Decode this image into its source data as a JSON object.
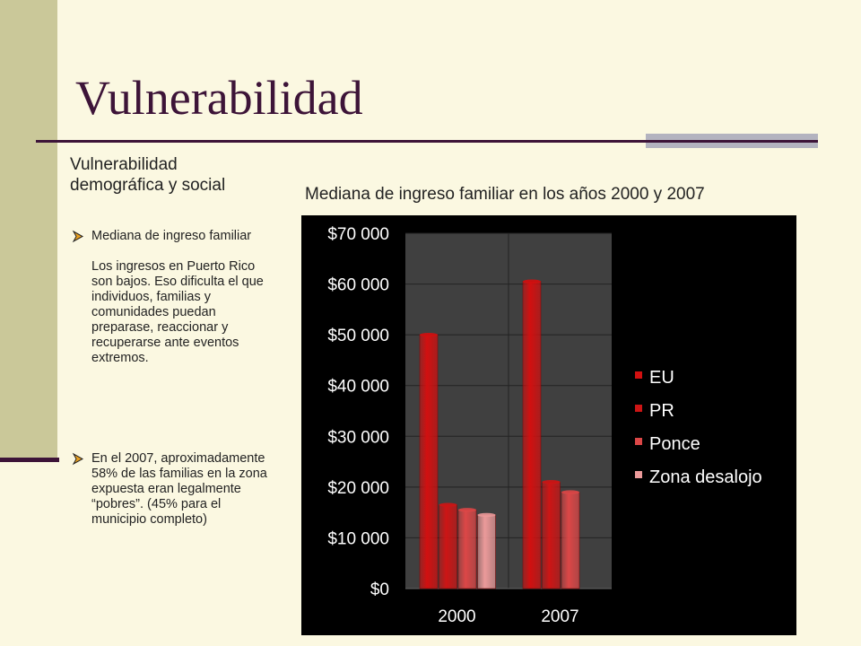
{
  "slide": {
    "title": "Vulnerabilidad",
    "subheading": "Vulnerabilidad demográfica y social",
    "bullets": [
      {
        "paragraphs": [
          "Mediana de ingreso familiar",
          "Los ingresos en Puerto Rico son bajos. Eso dificulta el que individuos, familias y comunidades puedan preparase, reaccionar y recuperarse ante eventos extremos."
        ]
      },
      {
        "paragraphs": [
          "En el 2007, aproximadamente 58% de las familias en la zona expuesta eran legalmente “pobres”. (45% para el municipio completo)"
        ]
      }
    ]
  },
  "colors": {
    "background": "#fbf8e1",
    "accent_band": "#cac899",
    "title": "#3d1438",
    "chart_background": "#000000",
    "plot_background": "#404040"
  },
  "chart_data": {
    "type": "bar",
    "title": "Mediana de ingreso familiar en los años 2000 y 2007",
    "categories": [
      "2000",
      "2007"
    ],
    "series": [
      {
        "name": "EU",
        "values": [
          50000,
          60500
        ],
        "color": "#d21010"
      },
      {
        "name": "PR",
        "values": [
          16500,
          21000
        ],
        "color": "#cd1515"
      },
      {
        "name": "Ponce",
        "values": [
          15500,
          19000
        ],
        "color": "#dc4747"
      },
      {
        "name": "Zona desalojo",
        "values": [
          14500,
          null
        ],
        "color": "#eb9a9a"
      }
    ],
    "y_ticks": [
      "$0",
      "$10 000",
      "$20 000",
      "$30 000",
      "$40 000",
      "$50 000",
      "$60 000",
      "$70 000"
    ],
    "ylim": [
      0,
      70000
    ],
    "grid": true,
    "legend_position": "right"
  }
}
